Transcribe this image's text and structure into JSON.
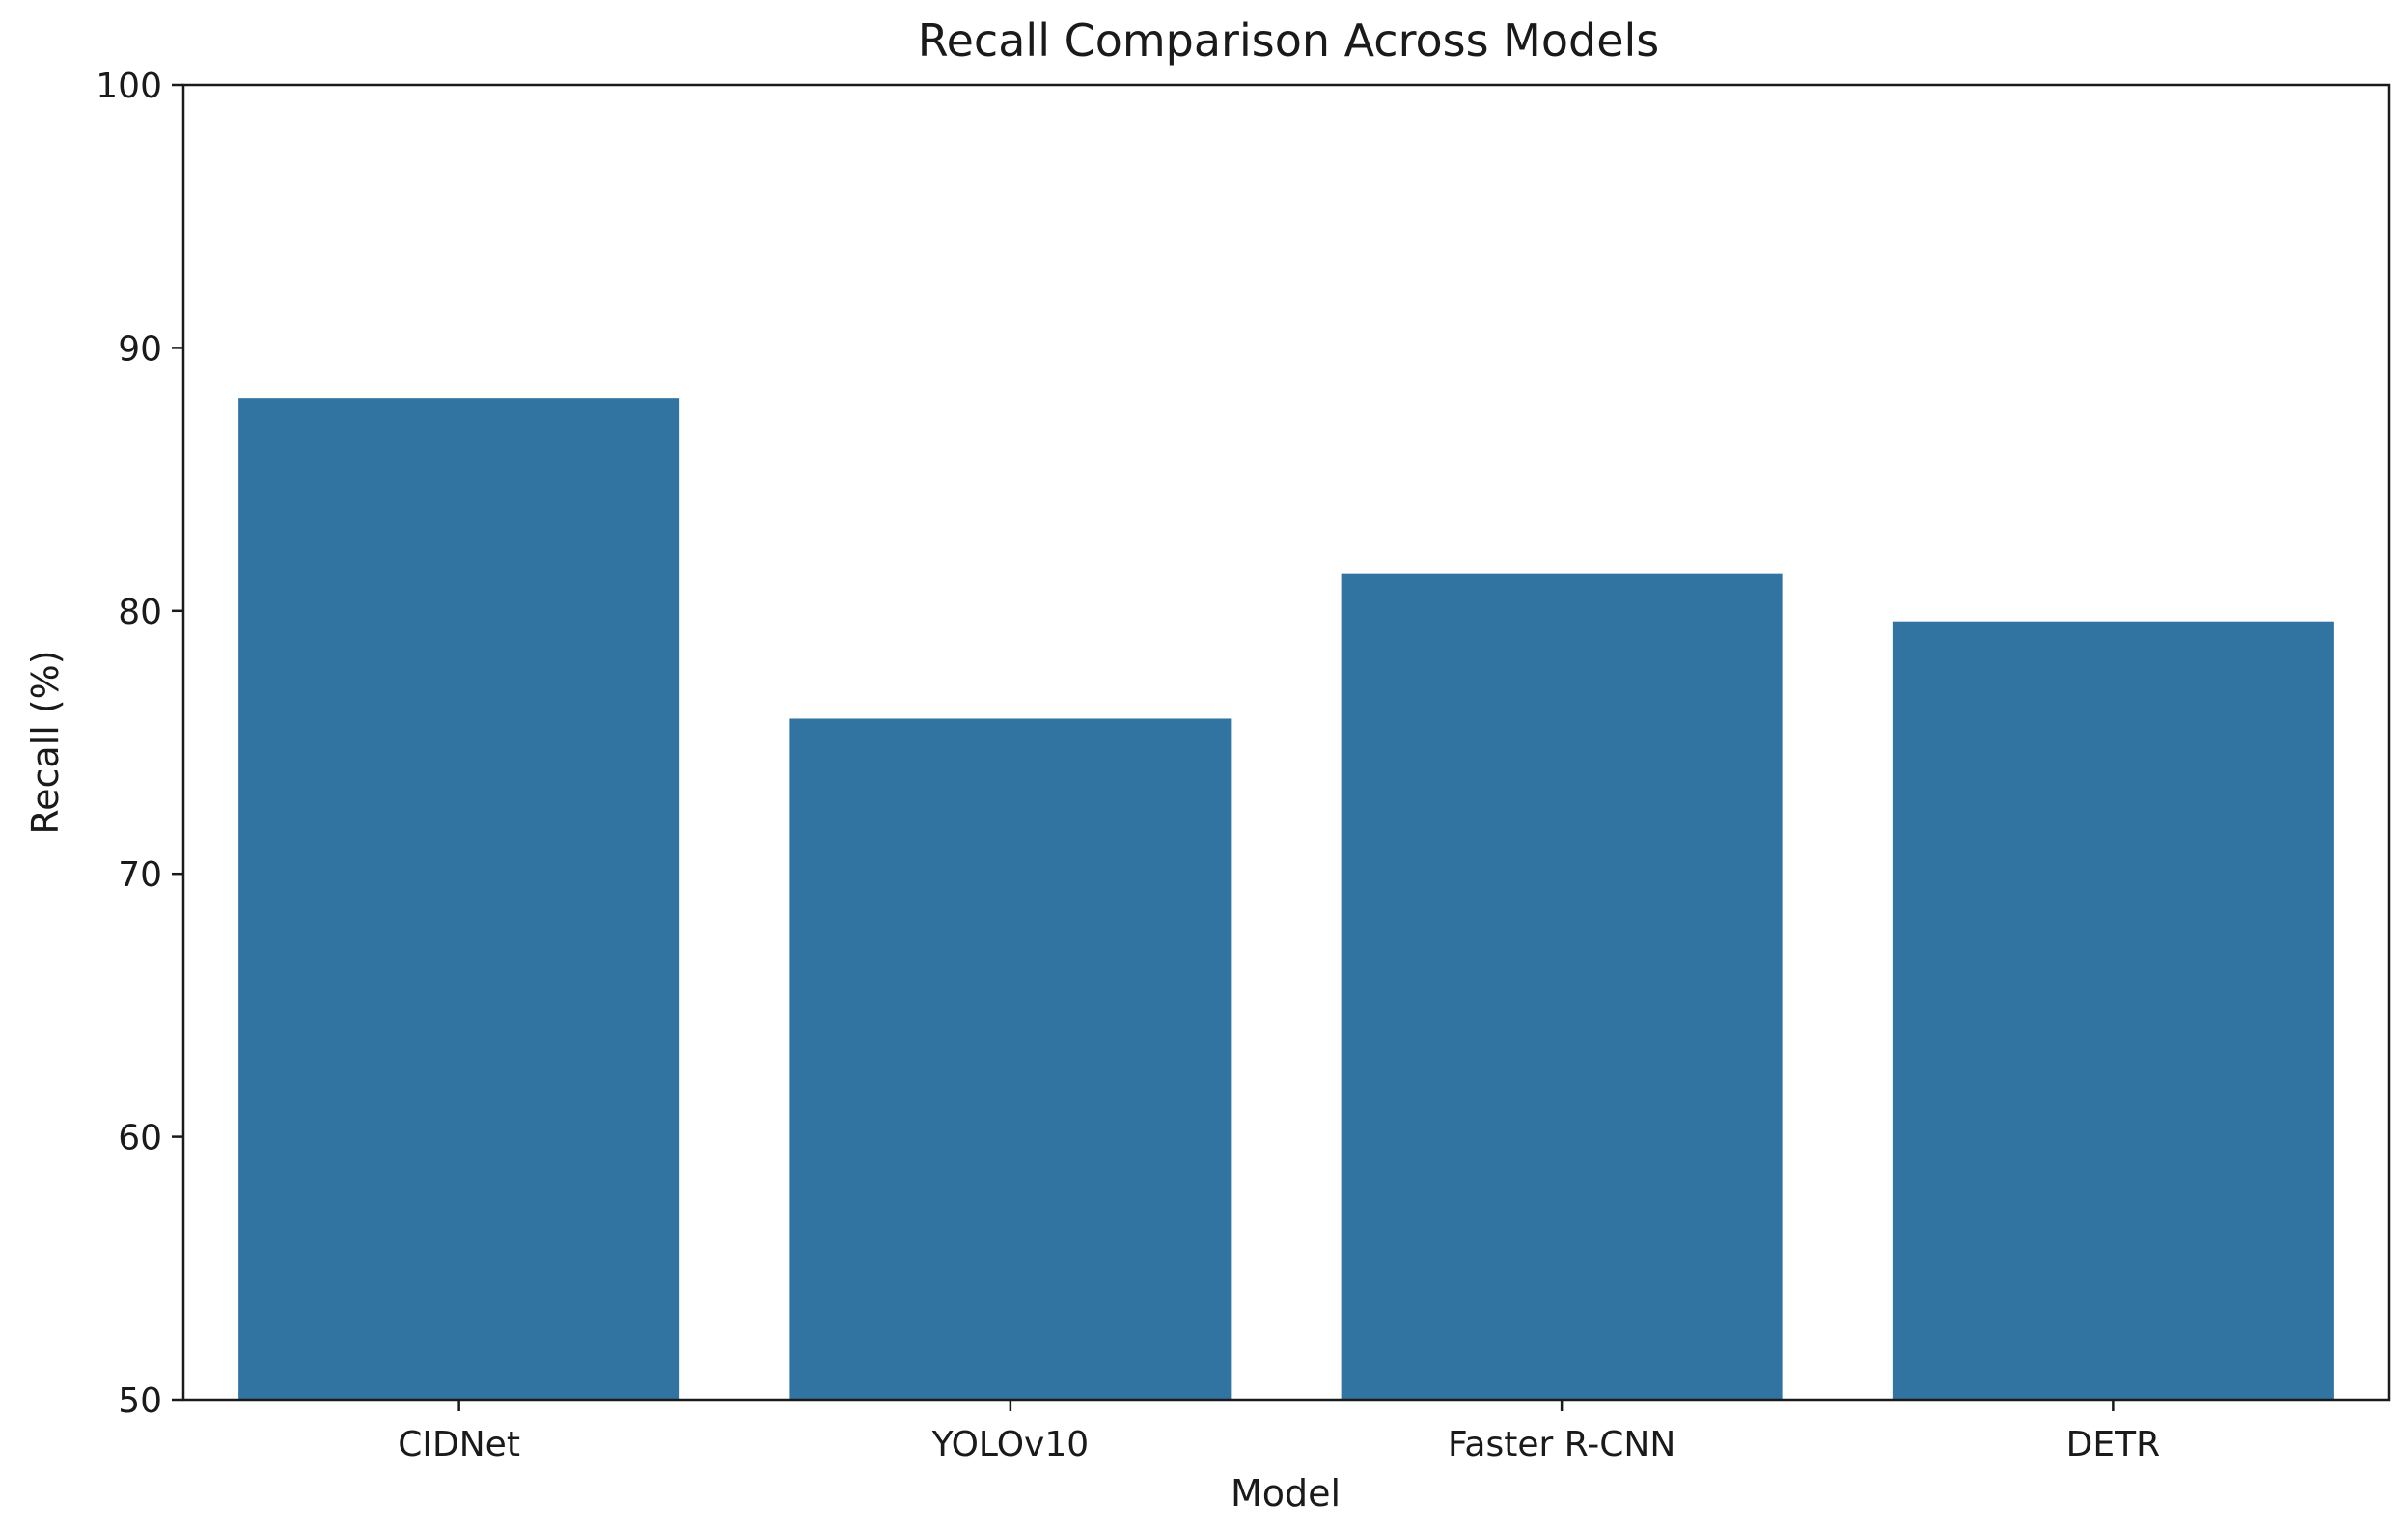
{
  "chart_data": {
    "type": "bar",
    "title": "Recall Comparison Across Models",
    "xlabel": "Model",
    "ylabel": "Recall (%)",
    "categories": [
      "CIDNet",
      "YOLOv10",
      "Faster R-CNN",
      "DETR"
    ],
    "values": [
      88.1,
      75.9,
      81.4,
      79.6
    ],
    "ylim": [
      50,
      100
    ],
    "yticks": [
      50,
      60,
      70,
      80,
      90,
      100
    ],
    "grid": false,
    "legend": "none",
    "bar_color": "#3274a1"
  }
}
